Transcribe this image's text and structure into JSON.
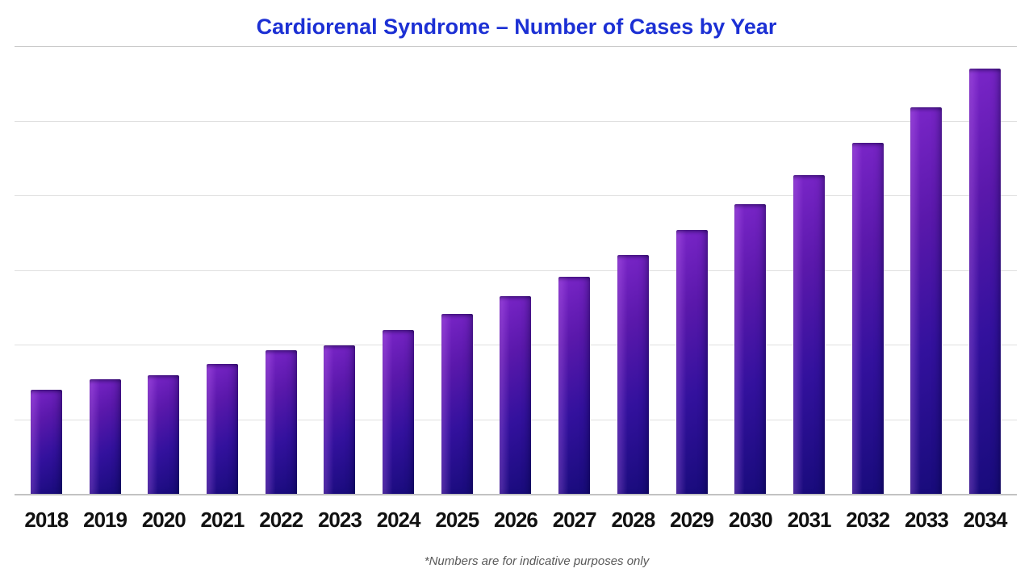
{
  "chart_data": {
    "type": "bar",
    "title": "Cardiorenal Syndrome – Number of Cases by Year",
    "categories": [
      "2018",
      "2019",
      "2020",
      "2021",
      "2022",
      "2023",
      "2024",
      "2025",
      "2026",
      "2027",
      "2028",
      "2029",
      "2030",
      "2031",
      "2032",
      "2033",
      "2034"
    ],
    "values": [
      1390,
      1530,
      1590,
      1740,
      1920,
      1990,
      2200,
      2410,
      2650,
      2910,
      3200,
      3540,
      3880,
      4270,
      4700,
      5180,
      5700
    ],
    "xlabel": "",
    "ylabel": "",
    "ylim": [
      0,
      6000
    ],
    "gridline_step": 1000,
    "y_axis_labeled": false,
    "grid": "horizontal",
    "legend": "none",
    "bar_gradient": [
      "#7B26C9",
      "#170B7A"
    ]
  },
  "footnote": {
    "text": "*Numbers are for indicative purposes only"
  },
  "colors": {
    "title": "#1C30D4",
    "background": "#FFFFFF",
    "gridline": "#E0E0E0",
    "axis_line": "#C2C2C2",
    "x_label": "#111111",
    "footnote": "#595959"
  }
}
